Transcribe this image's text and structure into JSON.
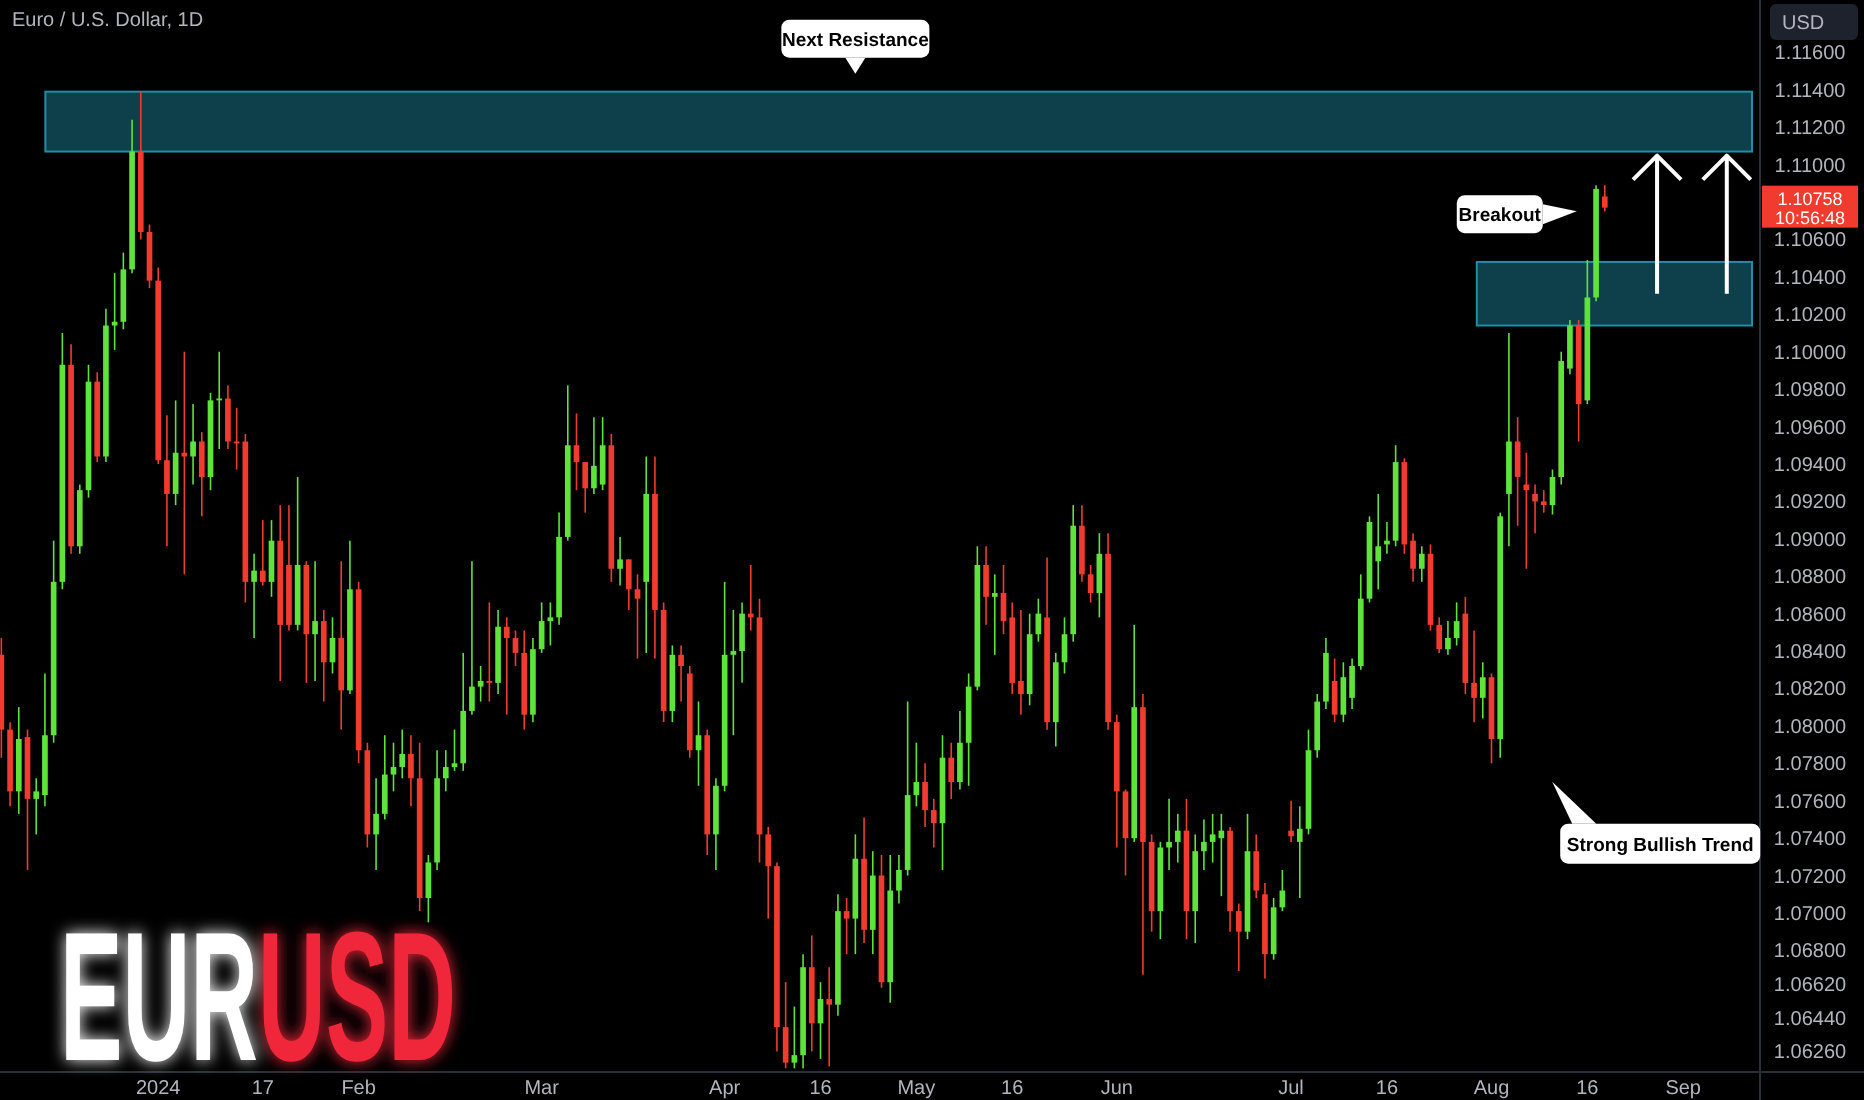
{
  "chart_data": {
    "type": "candlestick",
    "title": "Euro / U.S. Dollar, 1D",
    "ylabel": "USD",
    "categories": [
      null,
      null,
      null,
      null,
      null,
      null,
      null,
      null,
      null,
      null,
      null,
      null,
      null,
      null,
      null,
      null,
      null,
      null,
      "2024",
      null,
      null,
      null,
      null,
      null,
      null,
      null,
      null,
      null,
      null,
      null,
      "17",
      null,
      null,
      null,
      null,
      null,
      null,
      null,
      null,
      null,
      null,
      "Feb",
      null,
      null,
      null,
      null,
      null,
      null,
      null,
      null,
      null,
      null,
      null,
      null,
      null,
      null,
      null,
      null,
      null,
      null,
      null,
      null,
      "Mar",
      null,
      null,
      null,
      null,
      null,
      null,
      null,
      null,
      null,
      null,
      null,
      null,
      null,
      null,
      null,
      null,
      null,
      null,
      null,
      null,
      "Apr",
      null,
      null,
      null,
      null,
      null,
      null,
      null,
      null,
      null,
      null,
      "16",
      null,
      null,
      null,
      null,
      null,
      null,
      null,
      null,
      null,
      null,
      "May",
      null,
      null,
      null,
      null,
      null,
      null,
      null,
      null,
      null,
      null,
      "16",
      null,
      null,
      null,
      null,
      null,
      null,
      null,
      null,
      null,
      null,
      null,
      "Jun",
      null,
      null,
      null,
      null,
      null,
      null,
      null,
      null,
      null,
      null,
      null,
      null,
      null,
      null,
      null,
      null,
      null,
      null,
      null,
      "Jul",
      null,
      null,
      null,
      null,
      null,
      null,
      null,
      null,
      null,
      null,
      "16",
      null,
      null,
      null,
      null,
      null,
      null,
      null,
      null,
      null,
      null,
      null,
      "Aug",
      null,
      null,
      null,
      null,
      null,
      null,
      null,
      null,
      null,
      null,
      "16",
      null,
      null,
      null,
      null,
      null,
      null,
      null,
      null,
      null,
      null,
      "Sep",
      null,
      null,
      null,
      null,
      null,
      null,
      null,
      null,
      null
    ],
    "ohlc": [
      [
        1.0838,
        1.0847,
        1.0783,
        1.0798
      ],
      [
        1.0798,
        1.0802,
        1.0757,
        1.0765
      ],
      [
        1.0765,
        1.081,
        1.0753,
        1.0793
      ],
      [
        1.0794,
        1.0798,
        1.0723,
        1.0761
      ],
      [
        1.0761,
        1.0772,
        1.0742,
        1.0765
      ],
      [
        1.0763,
        1.0828,
        1.0757,
        1.0795
      ],
      [
        1.0795,
        1.0899,
        1.0791,
        1.0877
      ],
      [
        1.0877,
        1.101,
        1.0873,
        1.0993
      ],
      [
        1.0993,
        1.1004,
        1.0892,
        1.0896
      ],
      [
        1.0896,
        1.0929,
        1.0892,
        1.0926
      ],
      [
        1.0926,
        1.0993,
        1.0922,
        1.0984
      ],
      [
        1.0984,
        1.0989,
        1.0941,
        1.0944
      ],
      [
        1.0944,
        1.1023,
        1.0941,
        1.1014
      ],
      [
        1.1014,
        1.1042,
        1.1001,
        1.1016
      ],
      [
        1.1016,
        1.1053,
        1.1012,
        1.1044
      ],
      [
        1.1044,
        1.1124,
        1.1042,
        1.1107
      ],
      [
        1.1107,
        1.1139,
        1.106,
        1.1064
      ],
      [
        1.1064,
        1.1068,
        1.1034,
        1.1038
      ],
      [
        1.1038,
        1.1045,
        1.094,
        1.0942
      ],
      [
        1.0942,
        1.0966,
        1.0896,
        1.0924
      ],
      [
        1.0924,
        1.0974,
        1.0918,
        1.0946
      ],
      [
        1.0946,
        1.1,
        1.0881,
        1.0944
      ],
      [
        1.0944,
        1.0972,
        1.0929,
        1.0952
      ],
      [
        1.0952,
        1.0957,
        1.0912,
        1.0933
      ],
      [
        1.0933,
        1.0978,
        1.0926,
        1.0974
      ],
      [
        1.0974,
        1.1,
        1.0948,
        1.0975
      ],
      [
        1.0975,
        1.0982,
        1.0948,
        1.0952
      ],
      [
        1.0952,
        1.097,
        1.0937,
        1.0951
      ],
      [
        1.0952,
        1.0956,
        1.0866,
        1.0877
      ],
      [
        1.0877,
        1.0892,
        1.0847,
        1.0883
      ],
      [
        1.0883,
        1.091,
        1.0875,
        1.0877
      ],
      [
        1.0877,
        1.091,
        1.0869,
        1.0899
      ],
      [
        1.0899,
        1.0918,
        1.0824,
        1.0854
      ],
      [
        1.0886,
        1.0918,
        1.0851,
        1.0854
      ],
      [
        1.0854,
        1.0933,
        1.0851,
        1.0886
      ],
      [
        1.0886,
        1.0888,
        1.0823,
        1.0849
      ],
      [
        1.0849,
        1.0888,
        1.0824,
        1.0856
      ],
      [
        1.0856,
        1.0862,
        1.0813,
        1.0834
      ],
      [
        1.0834,
        1.0858,
        1.0828,
        1.0847
      ],
      [
        1.0847,
        1.0888,
        1.0798,
        1.0819
      ],
      [
        1.0819,
        1.0899,
        1.0817,
        1.0873
      ],
      [
        1.0873,
        1.0877,
        1.078,
        1.0787
      ],
      [
        1.0787,
        1.0791,
        1.0735,
        1.0742
      ],
      [
        1.0742,
        1.0772,
        1.0723,
        1.0753
      ],
      [
        1.0753,
        1.0795,
        1.075,
        1.0774
      ],
      [
        1.0774,
        1.0791,
        1.0765,
        1.0778
      ],
      [
        1.0778,
        1.0798,
        1.0772,
        1.0785
      ],
      [
        1.0785,
        1.0795,
        1.0757,
        1.0772
      ],
      [
        1.0772,
        1.0791,
        1.0701,
        1.0708
      ],
      [
        1.0708,
        1.0731,
        1.0695,
        1.0727
      ],
      [
        1.0727,
        1.0787,
        1.0723,
        1.0772
      ],
      [
        1.0772,
        1.0787,
        1.0765,
        1.0778
      ],
      [
        1.0778,
        1.0798,
        1.0776,
        1.078
      ],
      [
        1.078,
        1.0839,
        1.0776,
        1.0808
      ],
      [
        1.0808,
        1.0888,
        1.0806,
        1.0821
      ],
      [
        1.0821,
        1.0832,
        1.0813,
        1.0824
      ],
      [
        1.0824,
        1.0866,
        1.0813,
        1.0823
      ],
      [
        1.0823,
        1.0862,
        1.0817,
        1.0853
      ],
      [
        1.0853,
        1.0858,
        1.0806,
        1.0847
      ],
      [
        1.0847,
        1.0851,
        1.0832,
        1.0839
      ],
      [
        1.0839,
        1.0851,
        1.0798,
        1.0806
      ],
      [
        1.0806,
        1.0847,
        1.0802,
        1.0841
      ],
      [
        1.0841,
        1.0866,
        1.0839,
        1.0856
      ],
      [
        1.0856,
        1.0866,
        1.0843,
        1.0858
      ],
      [
        1.0858,
        1.0914,
        1.0854,
        1.0901
      ],
      [
        1.0901,
        1.0982,
        1.0899,
        1.095
      ],
      [
        1.095,
        1.0967,
        1.0926,
        1.0941
      ],
      [
        1.0941,
        1.0941,
        1.0914,
        1.0927
      ],
      [
        1.0927,
        1.0965,
        1.0924,
        1.0939
      ],
      [
        1.0929,
        1.0965,
        1.0926,
        1.095
      ],
      [
        1.095,
        1.0956,
        1.0877,
        1.0884
      ],
      [
        1.0884,
        1.0901,
        1.0875,
        1.0889
      ],
      [
        1.0889,
        1.0889,
        1.0862,
        1.0873
      ],
      [
        1.0873,
        1.0881,
        1.0836,
        1.0868
      ],
      [
        1.0877,
        1.0944,
        1.0839,
        1.0924
      ],
      [
        1.0924,
        1.0944,
        1.0836,
        1.0862
      ],
      [
        1.0862,
        1.0866,
        1.0802,
        1.0808
      ],
      [
        1.0808,
        1.0843,
        1.0802,
        1.0838
      ],
      [
        1.0838,
        1.0843,
        1.0813,
        1.0832
      ],
      [
        1.0828,
        1.0832,
        1.0783,
        1.0787
      ],
      [
        1.0787,
        1.0813,
        1.0768,
        1.0795
      ],
      [
        1.0795,
        1.0798,
        1.0731,
        1.0742
      ],
      [
        1.0742,
        1.0772,
        1.0723,
        1.0768
      ],
      [
        1.0768,
        1.0877,
        1.0765,
        1.0838
      ],
      [
        1.0838,
        1.0862,
        1.0795,
        1.084
      ],
      [
        1.084,
        1.0866,
        1.0823,
        1.086
      ],
      [
        1.086,
        1.0886,
        1.0851,
        1.0858
      ],
      [
        1.0858,
        1.0868,
        1.0727,
        1.0742
      ],
      [
        1.0742,
        1.0746,
        1.0697,
        1.0725
      ],
      [
        1.0725,
        1.0727,
        1.0626,
        1.0639
      ],
      [
        1.0639,
        1.0663,
        1.0617,
        1.062
      ],
      [
        1.062,
        1.065,
        1.0617,
        1.0624
      ],
      [
        1.0624,
        1.0678,
        1.0617,
        1.0671
      ],
      [
        1.0671,
        1.0688,
        1.0626,
        1.0641
      ],
      [
        1.0641,
        1.0663,
        1.0622,
        1.0654
      ],
      [
        1.0654,
        1.0671,
        1.0618,
        1.0651
      ],
      [
        1.0651,
        1.071,
        1.0645,
        1.0701
      ],
      [
        1.0701,
        1.0708,
        1.0678,
        1.0697
      ],
      [
        1.0697,
        1.0742,
        1.0678,
        1.0729
      ],
      [
        1.0729,
        1.0751,
        1.0684,
        1.0691
      ],
      [
        1.0691,
        1.0733,
        1.0678,
        1.072
      ],
      [
        1.072,
        1.0731,
        1.066,
        1.0663
      ],
      [
        1.0663,
        1.0731,
        1.0652,
        1.0712
      ],
      [
        1.0712,
        1.0731,
        1.0705,
        1.0723
      ],
      [
        1.0723,
        1.0813,
        1.072,
        1.0763
      ],
      [
        1.0763,
        1.0791,
        1.0757,
        1.077
      ],
      [
        1.077,
        1.078,
        1.0746,
        1.0755
      ],
      [
        1.0755,
        1.0761,
        1.0735,
        1.0748
      ],
      [
        1.0748,
        1.0795,
        1.0723,
        1.0783
      ],
      [
        1.0783,
        1.0791,
        1.0761,
        1.077
      ],
      [
        1.077,
        1.0808,
        1.0766,
        1.0791
      ],
      [
        1.0791,
        1.0828,
        1.0768,
        1.0821
      ],
      [
        1.0821,
        1.0896,
        1.0819,
        1.0886
      ],
      [
        1.0886,
        1.0896,
        1.0854,
        1.0869
      ],
      [
        1.0869,
        1.0881,
        1.0838,
        1.0871
      ],
      [
        1.0871,
        1.0886,
        1.0849,
        1.0856
      ],
      [
        1.0858,
        1.0866,
        1.0817,
        1.0823
      ],
      [
        1.0824,
        1.0862,
        1.0806,
        1.0817
      ],
      [
        1.0817,
        1.086,
        1.0811,
        1.0849
      ],
      [
        1.0849,
        1.0868,
        1.0845,
        1.086
      ],
      [
        1.0858,
        1.089,
        1.0798,
        1.0802
      ],
      [
        1.0802,
        1.0839,
        1.0789,
        1.0834
      ],
      [
        1.0834,
        1.0858,
        1.0828,
        1.0849
      ],
      [
        1.0849,
        1.0918,
        1.0845,
        1.0907
      ],
      [
        1.0907,
        1.0918,
        1.0877,
        1.0881
      ],
      [
        1.0881,
        1.0886,
        1.0866,
        1.0871
      ],
      [
        1.0871,
        1.0903,
        1.0858,
        1.0892
      ],
      [
        1.0892,
        1.0903,
        1.0798,
        1.0802
      ],
      [
        1.0802,
        1.0806,
        1.0735,
        1.0765
      ],
      [
        1.0765,
        1.0766,
        1.072,
        1.074
      ],
      [
        1.074,
        1.0854,
        1.0738,
        1.081
      ],
      [
        1.081,
        1.0817,
        1.0667,
        1.0738
      ],
      [
        1.0738,
        1.0742,
        1.069,
        1.0701
      ],
      [
        1.0701,
        1.0738,
        1.0686,
        1.0735
      ],
      [
        1.0735,
        1.0761,
        1.0723,
        1.0738
      ],
      [
        1.0738,
        1.0753,
        1.0727,
        1.0744
      ],
      [
        1.0744,
        1.0761,
        1.0686,
        1.0701
      ],
      [
        1.0701,
        1.0742,
        1.0684,
        1.0733
      ],
      [
        1.0733,
        1.075,
        1.0723,
        1.0738
      ],
      [
        1.0738,
        1.0753,
        1.0727,
        1.0742
      ],
      [
        1.074,
        1.0753,
        1.0709,
        1.0744
      ],
      [
        1.0744,
        1.0746,
        1.069,
        1.0701
      ],
      [
        1.0701,
        1.0705,
        1.0669,
        1.069
      ],
      [
        1.069,
        1.0753,
        1.0686,
        1.0733
      ],
      [
        1.0733,
        1.0742,
        1.0708,
        1.0712
      ],
      [
        1.071,
        1.0716,
        1.0665,
        1.0678
      ],
      [
        1.0678,
        1.0708,
        1.0675,
        1.0703
      ],
      [
        1.0703,
        1.0723,
        1.0701,
        1.0712
      ],
      [
        1.0744,
        1.076,
        1.0738,
        1.0741
      ],
      [
        1.0738,
        1.0757,
        1.0708,
        1.0745
      ],
      [
        1.0745,
        1.0798,
        1.0742,
        1.0787
      ],
      [
        1.0787,
        1.0817,
        1.0783,
        1.0813
      ],
      [
        1.0813,
        1.0847,
        1.0809,
        1.0839
      ],
      [
        1.0824,
        1.0836,
        1.0802,
        1.0806
      ],
      [
        1.0806,
        1.0834,
        1.0802,
        1.0826
      ],
      [
        1.0815,
        1.0836,
        1.0809,
        1.0832
      ],
      [
        1.0832,
        1.0881,
        1.083,
        1.0868
      ],
      [
        1.0868,
        1.0912,
        1.0866,
        1.0909
      ],
      [
        1.0888,
        1.0924,
        1.0873,
        1.0896
      ],
      [
        1.0897,
        1.0909,
        1.0892,
        1.0899
      ],
      [
        1.0899,
        1.095,
        1.0896,
        1.0941
      ],
      [
        1.0941,
        1.0943,
        1.0892,
        1.0897
      ],
      [
        1.0899,
        1.0903,
        1.0877,
        1.0884
      ],
      [
        1.0884,
        1.0896,
        1.0877,
        1.0892
      ],
      [
        1.0892,
        1.0897,
        1.0851,
        1.0854
      ],
      [
        1.0854,
        1.0858,
        1.0839,
        1.0841
      ],
      [
        1.0841,
        1.0856,
        1.0838,
        1.0847
      ],
      [
        1.0847,
        1.0866,
        1.0843,
        1.0856
      ],
      [
        1.086,
        1.0869,
        1.0817,
        1.0823
      ],
      [
        1.0823,
        1.0851,
        1.0802,
        1.0815
      ],
      [
        1.0815,
        1.0834,
        1.0804,
        1.0826
      ],
      [
        1.0826,
        1.0828,
        1.078,
        1.0793
      ],
      [
        1.0793,
        1.0914,
        1.0783,
        1.0912
      ],
      [
        1.0924,
        1.101,
        1.0896,
        1.0952
      ],
      [
        1.0952,
        1.0965,
        1.0907,
        1.0933
      ],
      [
        1.0929,
        1.0946,
        1.0884,
        1.0926
      ],
      [
        1.0924,
        1.0929,
        1.0903,
        1.092
      ],
      [
        1.092,
        1.0926,
        1.0914,
        1.0918
      ],
      [
        1.0918,
        1.0937,
        1.0913,
        1.0933
      ],
      [
        1.0933,
        1.1,
        1.0929,
        1.0995
      ],
      [
        1.0991,
        1.1017,
        1.0988,
        1.1014
      ],
      [
        1.1014,
        1.1017,
        1.0952,
        1.0972
      ],
      [
        1.0974,
        1.1049,
        1.0972,
        1.1029
      ],
      [
        1.1029,
        1.1089,
        1.1027,
        1.1087
      ],
      [
        1.1083,
        1.1089,
        1.1075,
        1.1077
      ],
      null,
      null,
      null,
      null,
      null,
      null,
      null,
      null,
      null,
      null,
      null,
      null,
      null,
      null,
      null,
      null,
      null,
      null
    ],
    "ylim": [
      1.0615,
      1.1188
    ],
    "yticks": [
      {
        "value": 1.116,
        "label": "1.11600"
      },
      {
        "value": 1.114,
        "label": "1.11400"
      },
      {
        "value": 1.112,
        "label": "1.11200"
      },
      {
        "value": 1.11,
        "label": "1.11000"
      },
      {
        "value": 1.106,
        "label": "1.10600"
      },
      {
        "value": 1.104,
        "label": "1.10400"
      },
      {
        "value": 1.102,
        "label": "1.10200"
      },
      {
        "value": 1.1,
        "label": "1.10000"
      },
      {
        "value": 1.098,
        "label": "1.09800"
      },
      {
        "value": 1.096,
        "label": "1.09600"
      },
      {
        "value": 1.094,
        "label": "1.09400"
      },
      {
        "value": 1.092,
        "label": "1.09200"
      },
      {
        "value": 1.09,
        "label": "1.09000"
      },
      {
        "value": 1.088,
        "label": "1.08800"
      },
      {
        "value": 1.086,
        "label": "1.08600"
      },
      {
        "value": 1.084,
        "label": "1.08400"
      },
      {
        "value": 1.082,
        "label": "1.08200"
      },
      {
        "value": 1.08,
        "label": "1.08000"
      },
      {
        "value": 1.078,
        "label": "1.07800"
      },
      {
        "value": 1.076,
        "label": "1.07600"
      },
      {
        "value": 1.074,
        "label": "1.07400"
      },
      {
        "value": 1.072,
        "label": "1.07200"
      },
      {
        "value": 1.07,
        "label": "1.07000"
      },
      {
        "value": 1.068,
        "label": "1.06800"
      },
      {
        "value": 1.0662,
        "label": "1.06620"
      },
      {
        "value": 1.0644,
        "label": "1.06440"
      },
      {
        "value": 1.0626,
        "label": "1.06260"
      }
    ],
    "bands": [
      {
        "axis": "y",
        "from": 1.1107,
        "to": 1.1139,
        "label": "Next Resistance",
        "color": "#1f8fa6"
      },
      {
        "axis": "y",
        "from": 1.1014,
        "to": 1.1048,
        "color": "#1f8fa6"
      }
    ],
    "annotations": [
      "1.10758",
      "10:56:48",
      "Breakout",
      "Strong Bullish Trend",
      "EURUSD"
    ],
    "grid": false
  }
}
